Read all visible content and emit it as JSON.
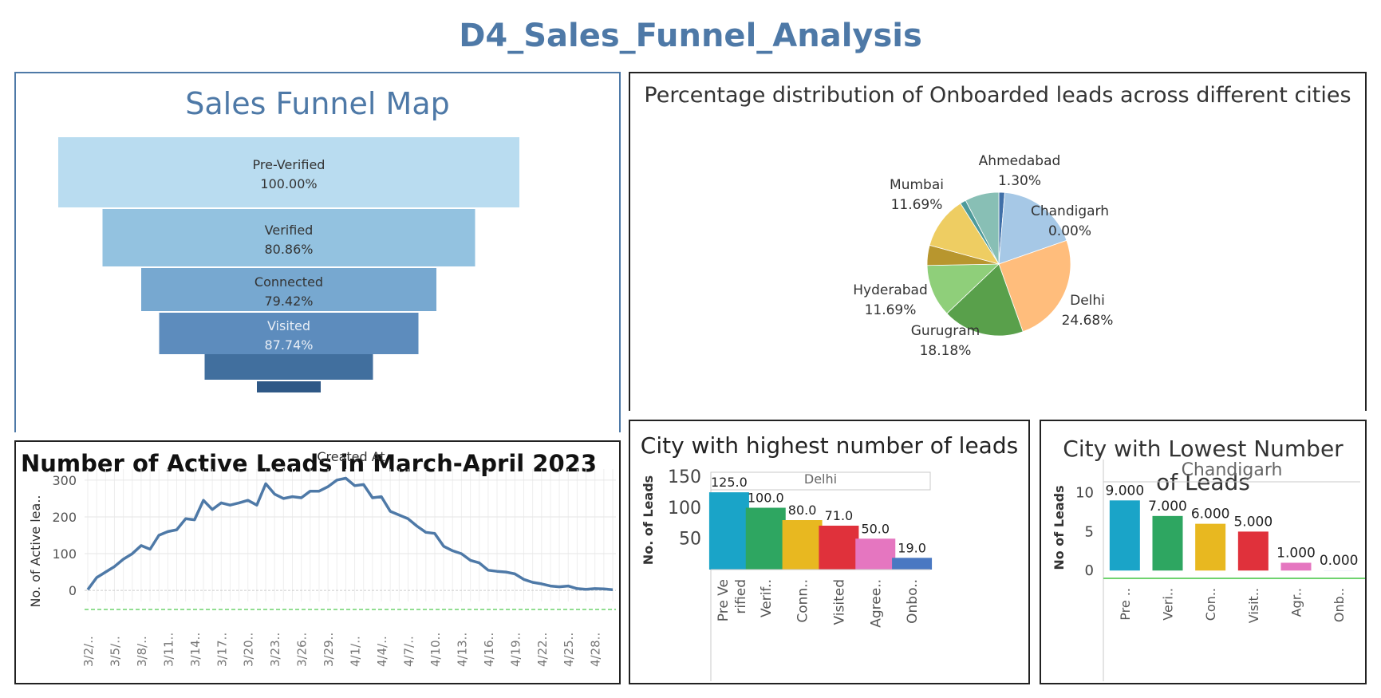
{
  "dashboard_title": "D4_Sales_Funnel_Analysis",
  "chart_data": [
    {
      "id": "funnel",
      "type": "bar",
      "title": "Sales Funnel Map",
      "categories": [
        "Pre-Verified",
        "Verified",
        "Connected",
        "Visited",
        "",
        ""
      ],
      "values": [
        100.0,
        80.86,
        79.42,
        87.74,
        null,
        null
      ],
      "labels": [
        "100.00%",
        "80.86%",
        "79.42%",
        "87.74%",
        "",
        ""
      ],
      "colors": [
        "#b9dcf0",
        "#93c2e0",
        "#77a8d0",
        "#5d8cbd",
        "#416f9e",
        "#2f5886"
      ]
    },
    {
      "id": "pie",
      "type": "pie",
      "title": "Percentage distribution of Onboarded leads across different cities",
      "slices": [
        {
          "name": "Ahmedabad",
          "label": "1.30%",
          "value": 1.3,
          "color": "#3f6fa8"
        },
        {
          "name": "Chandigarh",
          "label": "0.00%",
          "value": 0.0,
          "color": "#a6c8e6"
        },
        {
          "name": "",
          "label": "",
          "value": 18.18,
          "color": "#a6c8e6"
        },
        {
          "name": "Delhi",
          "label": "24.68%",
          "value": 24.68,
          "color": "#ffbd7c"
        },
        {
          "name": "Gurugram",
          "label": "18.18%",
          "value": 18.18,
          "color": "#59a04b"
        },
        {
          "name": "Hyderabad",
          "label": "11.69%",
          "value": 11.69,
          "color": "#8fcf7a"
        },
        {
          "name": "",
          "label": "",
          "value": 4.5,
          "color": "#b8962e"
        },
        {
          "name": "Mumbai",
          "label": "11.69%",
          "value": 11.69,
          "color": "#eecd62"
        },
        {
          "name": "",
          "label": "",
          "value": 1.3,
          "color": "#4e9a9a"
        },
        {
          "name": "",
          "label": "",
          "value": 7.6,
          "color": "#88bfb5"
        }
      ]
    },
    {
      "id": "active_leads",
      "type": "line",
      "title": "Number of Active Leads in March-April 2023",
      "header": "Created At",
      "ylabel": "No. of Active lea..",
      "ylim": [
        -30,
        330
      ],
      "yticks": [
        0,
        100,
        200,
        300
      ],
      "tick_labels": [
        "3/2/..",
        "3/5/..",
        "3/8/..",
        "3/11..",
        "3/14..",
        "3/17..",
        "3/20..",
        "3/23..",
        "3/26..",
        "3/29..",
        "4/1/..",
        "4/4/..",
        "4/7/..",
        "4/10..",
        "4/13..",
        "4/16..",
        "4/19..",
        "4/22..",
        "4/25..",
        "4/28.."
      ],
      "color": "#4e79a7",
      "values": [
        2,
        35,
        50,
        65,
        85,
        100,
        122,
        112,
        150,
        160,
        165,
        195,
        192,
        245,
        220,
        238,
        232,
        238,
        245,
        232,
        290,
        262,
        250,
        255,
        252,
        270,
        270,
        282,
        300,
        305,
        285,
        288,
        252,
        255,
        215,
        205,
        195,
        175,
        158,
        155,
        120,
        108,
        100,
        82,
        75,
        55,
        52,
        50,
        45,
        30,
        22,
        18,
        12,
        10,
        12,
        5,
        3,
        5,
        4,
        2
      ]
    },
    {
      "id": "highest_city",
      "type": "bar",
      "title": "City with highest number of leads",
      "facet": "Delhi",
      "ylabel": "No. of Leads",
      "yticks": [
        50,
        100,
        150
      ],
      "ylim": [
        0,
        160
      ],
      "categories": [
        "Pre Ve rified",
        "Verif..",
        "Conn..",
        "Visited",
        "Agree..",
        "Onbo.."
      ],
      "values": [
        125.0,
        100.0,
        80.0,
        71.0,
        50.0,
        19.0
      ],
      "labels": [
        "125.0",
        "100.0",
        "80.0",
        "71.0",
        "50.0",
        "19.0"
      ],
      "colors": [
        "#1aa4c8",
        "#2ea661",
        "#e8b820",
        "#e0313b",
        "#e576c0",
        "#4a78c2"
      ]
    },
    {
      "id": "lowest_city",
      "type": "bar",
      "title": "City with Lowest Number of Leads",
      "facet": "Chandigarh",
      "ylabel": "No of Leads",
      "yticks": [
        0,
        5,
        10
      ],
      "ylim": [
        -1,
        12
      ],
      "categories": [
        "Pre ..",
        "Veri..",
        "Con..",
        "Visit..",
        "Agr..",
        "Onb.."
      ],
      "values": [
        9.0,
        7.0,
        6.0,
        5.0,
        1.0,
        0.0
      ],
      "labels": [
        "9.000",
        "7.000",
        "6.000",
        "5.000",
        "1.000",
        "0.000"
      ],
      "colors": [
        "#1aa4c8",
        "#2ea661",
        "#e8b820",
        "#e0313b",
        "#e576c0",
        "#4a78c2"
      ]
    }
  ]
}
